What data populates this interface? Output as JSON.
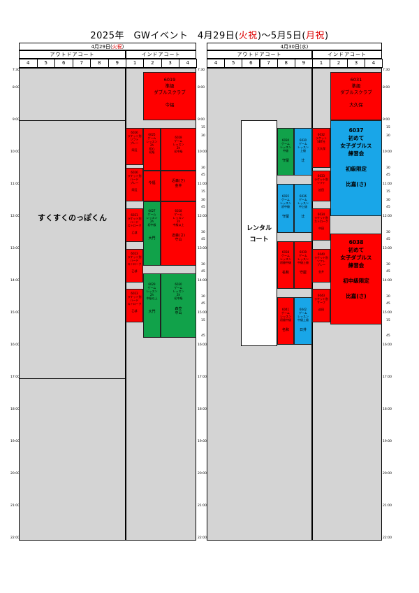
{
  "title": {
    "pre": "2025年　GWイベント　4月29日(",
    "hol1": "火祝",
    "mid": ")〜5月5日(",
    "hol2": "月祝",
    "post": ")"
  },
  "days": [
    {
      "date_pre": "4月29日(",
      "date_hol": "火祝",
      "date_post": ")",
      "outdoor": "アウトドアコート",
      "indoor": "インドアコート",
      "outdoor_cols": [
        "4",
        "5",
        "6",
        "7",
        "8",
        "9"
      ],
      "indoor_cols": [
        "1",
        "2",
        "3",
        "4"
      ]
    },
    {
      "date_pre": "4月30日(",
      "date_hol": "水",
      "date_post": ")",
      "outdoor": "アウトドアコート",
      "indoor": "インドアコート",
      "outdoor_cols": [
        "4",
        "5",
        "6",
        "7",
        "8",
        "9"
      ],
      "indoor_cols": [
        "1",
        "2",
        "3",
        "4"
      ]
    }
  ],
  "times": [
    "7:30",
    "8:00",
    "9:00",
    "10:00",
    "11:00",
    "12:00",
    "13:00",
    "14:00",
    "15:00",
    "16:00",
    "17:00",
    "18:00",
    "19:00",
    "20:00",
    "21:00",
    "22:00"
  ],
  "minor_ticks": [
    "15",
    "30",
    "45"
  ],
  "day1": {
    "outdoor_event": "すくすくのっぽくん",
    "b6019": [
      "6019",
      "準級",
      "ダブルスクラブ",
      "",
      "今福"
    ],
    "b6026a": [
      "6026",
      "ラケット別",
      "ソフト",
      "プレー",
      "",
      "岡辺"
    ],
    "b6025": [
      "6025",
      "ゲーム",
      "レッスン",
      "2h",
      "初心",
      "初級"
    ],
    "b6028": [
      "6028",
      "ゲーム",
      "レッスン",
      "2h",
      "初中級"
    ],
    "b_imafuku": "今福",
    "b_kondo": [
      "近森(さ)",
      "金井"
    ],
    "b6026b": [
      "6026",
      "ラケット別",
      "ハード",
      "プレー",
      "",
      "岡辺"
    ],
    "b6027": [
      "6027",
      "ゲーム",
      "レッスン",
      "2h",
      "初中級",
      "",
      "大門"
    ],
    "b6028b": [
      "6028",
      "ゲーム",
      "レッスン",
      "2h",
      "中級以上",
      "",
      "近森(さ)",
      "守山"
    ],
    "b6021": [
      "6021",
      "ラケット別",
      "ハード",
      "ストローク",
      "",
      "乙部"
    ],
    "b6023": [
      "6023",
      "ラケット別",
      "ハード",
      "ストローク",
      "",
      "乙部"
    ],
    "b6029": [
      "6029",
      "ゲーム",
      "レッスン",
      "2h",
      "中級以上",
      "",
      "大門"
    ],
    "b6030": [
      "6030",
      "ゲーム",
      "レッスン",
      "2h",
      "初中級",
      "",
      "森笠",
      "中山"
    ]
  },
  "day2": {
    "rental": [
      "レンタル",
      "コート"
    ],
    "g1": [
      "6030",
      "ゲーム",
      "レッスン",
      "中級",
      "",
      "守屋"
    ],
    "bl1": [
      "6030",
      "ゲーム",
      "レッスン",
      "上級",
      "",
      "辻"
    ],
    "r1": [
      "6032",
      "ラケット",
      "SBT社",
      "",
      "大久保"
    ],
    "r2": [
      "6033",
      "ラケット別",
      "ソフト",
      "",
      "迫田"
    ],
    "bl2": [
      "6035",
      "ゲーム",
      "レッスン",
      "初中級",
      "",
      "守屋"
    ],
    "bl3": [
      "6036",
      "ゲーム",
      "レッスン",
      "中上級",
      "",
      "辻"
    ],
    "r3": [
      "6034",
      "ラケット別",
      "ストローク",
      "",
      "中田"
    ],
    "r4": [
      "6038",
      "ゲーム",
      "レッスン",
      "初級中級",
      "",
      "名和"
    ],
    "r5": [
      "6039",
      "ゲーム",
      "レッスン",
      "中級上級",
      "",
      "守屋"
    ],
    "r6": [
      "6040",
      "ラケット別",
      "ソフト",
      "プレー",
      "",
      "金井"
    ],
    "r7": [
      "6041",
      "ゲーム",
      "レッスン",
      "初級中級",
      "",
      "名和"
    ],
    "bl4": [
      "6042",
      "ゲーム",
      "レッスン",
      "中級上級",
      "",
      "日井"
    ],
    "r8": [
      "6043",
      "ラケット別",
      "サーブ",
      "",
      "迫田"
    ],
    "b6031": [
      "6031",
      "準級",
      "ダブルスクラブ",
      "",
      "大久保"
    ],
    "b6037": [
      "6037",
      "初めて",
      "女子ダブルス",
      "練習会",
      "",
      "初級限定",
      "",
      "比嘉(さ)"
    ],
    "b6038": [
      "6038",
      "初めて",
      "女子ダブルス",
      "練習会",
      "",
      "初中級限定",
      "",
      "比嘉(さ)"
    ]
  }
}
